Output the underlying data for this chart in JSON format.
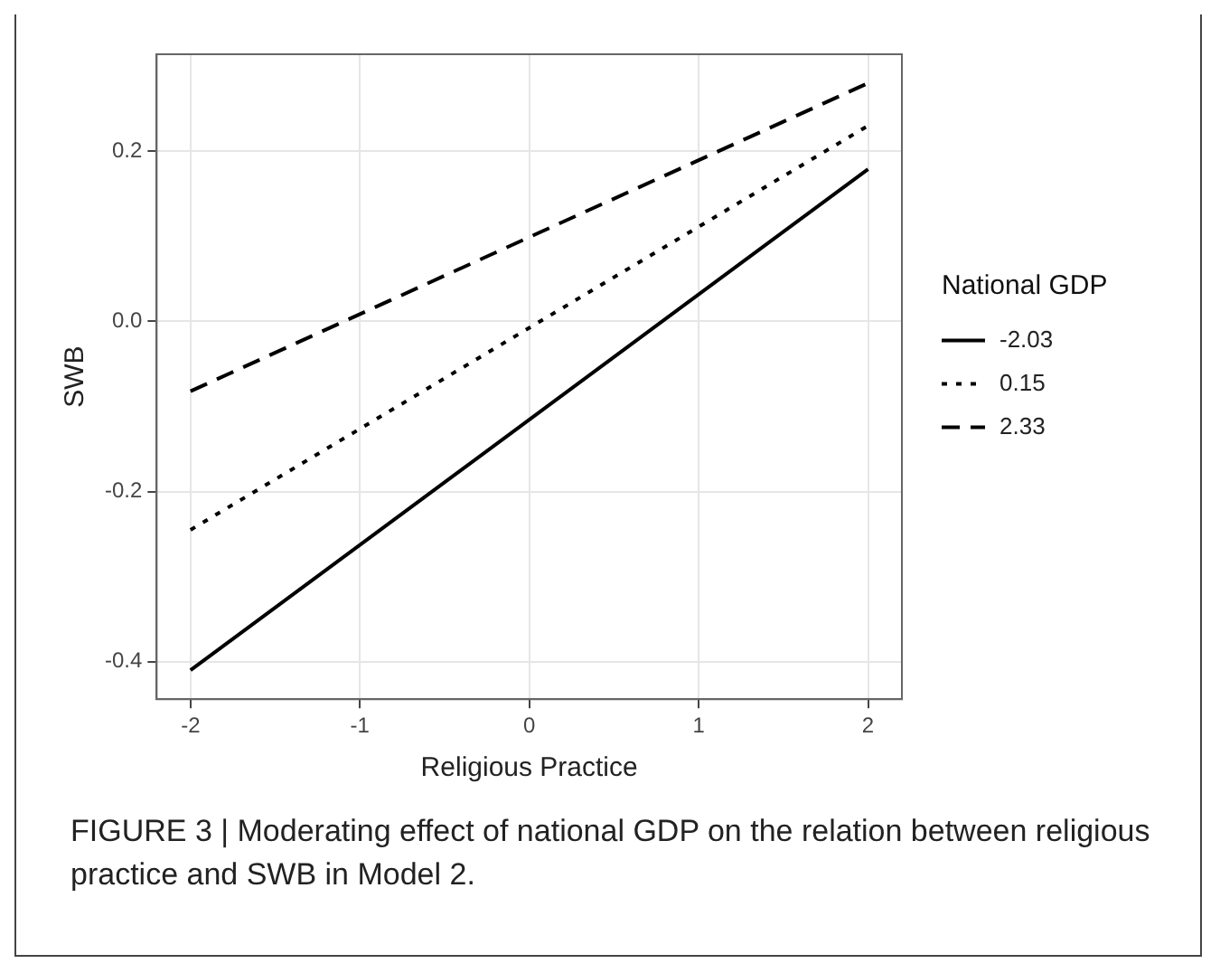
{
  "chart_data": {
    "type": "line",
    "xlabel": "Religious Practice",
    "ylabel": "SWB",
    "legend_title": "National GDP",
    "legend": "right",
    "grid": true,
    "marker": "none",
    "x": [
      -2,
      2
    ],
    "xlim": [
      -2.2,
      2.2
    ],
    "xticks": [
      -2,
      -1,
      0,
      1,
      2
    ],
    "ylim": [
      -0.444,
      0.314
    ],
    "yticks": [
      -0.4,
      -0.2,
      {
        "value": 0,
        "label": "0.0"
      },
      0.2
    ],
    "series": [
      {
        "name": "-2.03",
        "color": "#000000",
        "line_style": "solid",
        "values": [
          -0.41,
          0.179
        ]
      },
      {
        "name": "0.15",
        "color": "#000000",
        "line_style": "dotted",
        "values": [
          -0.245,
          0.23
        ]
      },
      {
        "name": "2.33",
        "color": "#000000",
        "line_style": "dashed",
        "values": [
          -0.082,
          0.28
        ]
      }
    ],
    "annotations": [
      "FIGURE 3 | Moderating effect of national GDP on the relation between religious practice and SWB in Model 2."
    ]
  }
}
